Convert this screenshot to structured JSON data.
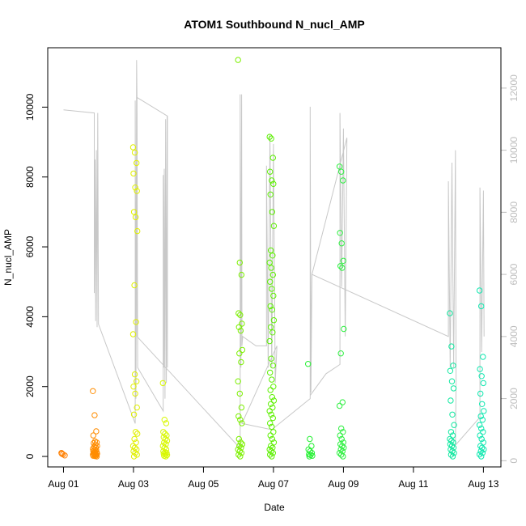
{
  "chart_data": {
    "type": "scatter",
    "title": "ATOM1 Southbound N_nucl_AMP",
    "xlabel": "Date",
    "ylabel": "N_nucl_AMP",
    "x_ticks": [
      "Aug 01",
      "Aug 03",
      "Aug 05",
      "Aug 07",
      "Aug 09",
      "Aug 11",
      "Aug 13"
    ],
    "x_tick_days": [
      1,
      3,
      5,
      7,
      9,
      11,
      13
    ],
    "xlim_days": [
      0.55,
      13.5
    ],
    "ylim": [
      -300,
      11700
    ],
    "y_ticks": [
      0,
      2000,
      4000,
      6000,
      8000,
      10000
    ],
    "y2lim": [
      -200,
      13300
    ],
    "y2_ticks": [
      0,
      2000,
      4000,
      6000,
      8000,
      10000,
      12000
    ],
    "grid": false,
    "colors": {
      "line": "#c8c8c8",
      "right_axis": "#bdbdbd",
      "frame": "#000000"
    },
    "point_groups": [
      {
        "day": 1.0,
        "color": "#ff7f00",
        "values": [
          100,
          60,
          30,
          80
        ]
      },
      {
        "day": 1.9,
        "color": "#ff8c00",
        "values": [
          1870,
          1180,
          720,
          600,
          430,
          400,
          380,
          330,
          300,
          270,
          250,
          220,
          200,
          180,
          150,
          130,
          120,
          100,
          90,
          80,
          70,
          60,
          50,
          40,
          30,
          20,
          10,
          0
        ]
      },
      {
        "day": 3.05,
        "color": "#e0f000",
        "values": [
          8850,
          8700,
          8400,
          8100,
          7700,
          7600,
          7000,
          6850,
          6450,
          4900,
          3850,
          3500,
          2350,
          2150,
          2000,
          1800,
          1400,
          1200,
          700,
          650,
          500,
          400,
          300,
          250,
          200,
          150,
          100,
          50,
          0
        ]
      },
      {
        "day": 3.9,
        "color": "#d8f800",
        "values": [
          2100,
          1050,
          950,
          700,
          650,
          600,
          550,
          500,
          450,
          400,
          350,
          300,
          250,
          200,
          150,
          120,
          100,
          80,
          60,
          40,
          20,
          0
        ]
      },
      {
        "day": 6.05,
        "color": "#7cf000",
        "values": [
          11350,
          5550,
          5200,
          4100,
          4050,
          3800,
          3700,
          3600,
          3050,
          2950,
          2700,
          2150,
          1800,
          1400,
          1150,
          1050,
          950,
          500,
          400,
          350,
          300,
          250,
          200,
          150,
          100,
          50,
          0
        ]
      },
      {
        "day": 6.95,
        "color": "#5cf000",
        "values": [
          9150,
          9100,
          8550,
          8150,
          7900,
          7800,
          7500,
          7000,
          6600,
          5900,
          5750,
          5550,
          5400,
          5200,
          5000,
          4800,
          4600,
          4300,
          4200,
          3900,
          3700,
          3550,
          3300,
          2800,
          2600,
          2400,
          2200,
          2000,
          1900,
          1700,
          1600,
          1500,
          1400,
          1300,
          1200,
          1100,
          950,
          850,
          700,
          600,
          500,
          400,
          300,
          250,
          200,
          150,
          100,
          50,
          0
        ]
      },
      {
        "day": 8.05,
        "color": "#22f030",
        "values": [
          2650,
          500,
          300,
          200,
          150,
          100,
          60,
          40,
          20,
          0
        ]
      },
      {
        "day": 8.95,
        "color": "#2df040",
        "values": [
          8300,
          8150,
          7900,
          6400,
          6100,
          5600,
          5450,
          5400,
          3650,
          2950,
          1550,
          1450,
          800,
          700,
          600,
          500,
          400,
          350,
          300,
          250,
          200,
          150,
          100,
          50,
          0
        ]
      },
      {
        "day": 12.1,
        "color": "#10e8a0",
        "values": [
          4100,
          3150,
          2600,
          2450,
          2150,
          1950,
          1600,
          1200,
          900,
          700,
          600,
          500,
          450,
          400,
          350,
          300,
          250,
          200,
          150,
          100,
          50,
          0
        ]
      },
      {
        "day": 12.95,
        "color": "#10e8b0",
        "values": [
          4750,
          4300,
          2850,
          2500,
          2300,
          2100,
          1800,
          1500,
          1300,
          1150,
          1050,
          900,
          800,
          700,
          600,
          500,
          400,
          300,
          250,
          200,
          150,
          100,
          60,
          0
        ]
      }
    ],
    "line_y2": [
      [
        1.0,
        11300
      ],
      [
        1.88,
        11200
      ],
      [
        1.88,
        5400
      ],
      [
        1.9,
        9700
      ],
      [
        1.92,
        4500
      ],
      [
        1.94,
        10000
      ],
      [
        1.96,
        4300
      ],
      [
        1.98,
        11200
      ],
      [
        2.0,
        4400
      ],
      [
        3.05,
        1200
      ],
      [
        3.05,
        11600
      ],
      [
        3.07,
        2000
      ],
      [
        3.09,
        12900
      ],
      [
        3.1,
        11600
      ],
      [
        3.12,
        3000
      ],
      [
        3.85,
        1600
      ],
      [
        3.85,
        9200
      ],
      [
        3.87,
        3000
      ],
      [
        3.88,
        9400
      ],
      [
        3.9,
        2000
      ],
      [
        3.92,
        11000
      ],
      [
        3.94,
        2500
      ],
      [
        3.96,
        11100
      ],
      [
        3.97,
        3000
      ],
      [
        3.97,
        11100
      ],
      [
        3.1,
        11700
      ],
      [
        3.1,
        4000
      ],
      [
        6.05,
        400
      ],
      [
        6.05,
        11800
      ],
      [
        6.07,
        3000
      ],
      [
        6.09,
        11800
      ],
      [
        6.1,
        3700
      ],
      [
        6.12,
        4000
      ],
      [
        6.5,
        3700
      ],
      [
        6.8,
        3700
      ],
      [
        6.8,
        9500
      ],
      [
        6.85,
        3000
      ],
      [
        6.9,
        10500
      ],
      [
        6.95,
        3000
      ],
      [
        7.0,
        10200
      ],
      [
        7.05,
        2500
      ],
      [
        7.1,
        3700
      ],
      [
        6.1,
        1200
      ],
      [
        6.95,
        1000
      ],
      [
        8.05,
        2000
      ],
      [
        8.05,
        11400
      ],
      [
        8.07,
        2200
      ],
      [
        8.1,
        6000
      ],
      [
        8.05,
        2100
      ],
      [
        8.5,
        2800
      ],
      [
        8.9,
        3100
      ],
      [
        8.9,
        11200
      ],
      [
        8.95,
        5600
      ],
      [
        9.0,
        10700
      ],
      [
        9.05,
        4000
      ],
      [
        9.1,
        10400
      ],
      [
        8.1,
        6000
      ],
      [
        12.0,
        4000
      ],
      [
        12.0,
        9000
      ],
      [
        12.05,
        3000
      ],
      [
        12.1,
        9600
      ],
      [
        12.15,
        3000
      ],
      [
        12.2,
        10000
      ],
      [
        12.22,
        2500
      ],
      [
        12.2,
        500
      ],
      [
        12.9,
        1400
      ],
      [
        12.9,
        8800
      ],
      [
        12.95,
        3500
      ],
      [
        13.0,
        8700
      ],
      [
        13.02,
        4000
      ]
    ]
  }
}
